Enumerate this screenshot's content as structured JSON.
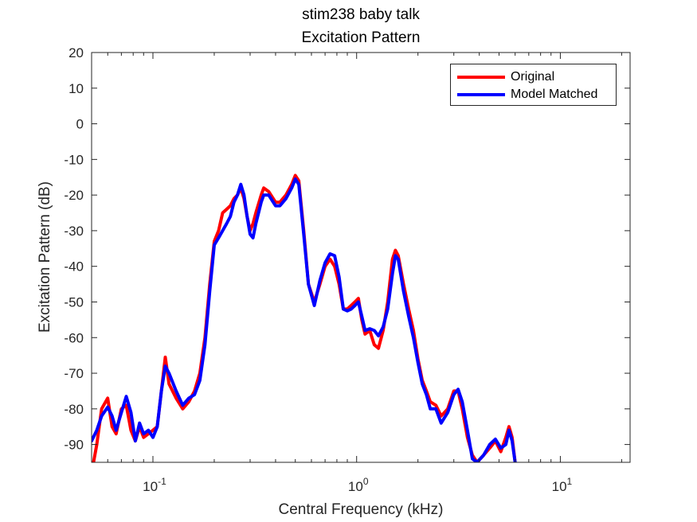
{
  "chart_data": {
    "type": "line",
    "title": "stim238 baby talk",
    "subtitle": "Excitation Pattern",
    "xlabel": "Central Frequency (kHz)",
    "ylabel": "Excitation Pattern (dB)",
    "xscale": "log",
    "xlim": [
      0.05,
      22
    ],
    "ylim": [
      -95,
      20
    ],
    "xticks": [
      {
        "value": 0.1,
        "label": "10",
        "exp": "-1"
      },
      {
        "value": 1,
        "label": "10",
        "exp": "0"
      },
      {
        "value": 10,
        "label": "10",
        "exp": "1"
      }
    ],
    "yticks": [
      20,
      10,
      0,
      -10,
      -20,
      -30,
      -40,
      -50,
      -60,
      -70,
      -80,
      -90
    ],
    "grid": false,
    "legend_position": "top-right",
    "series": [
      {
        "name": "Original",
        "color": "#ff0000",
        "points": [
          [
            0.05,
            -98
          ],
          [
            0.053,
            -90
          ],
          [
            0.056,
            -80
          ],
          [
            0.06,
            -77
          ],
          [
            0.063,
            -85
          ],
          [
            0.066,
            -87
          ],
          [
            0.07,
            -80
          ],
          [
            0.074,
            -79
          ],
          [
            0.078,
            -86
          ],
          [
            0.082,
            -89
          ],
          [
            0.086,
            -85
          ],
          [
            0.09,
            -88
          ],
          [
            0.095,
            -87
          ],
          [
            0.1,
            -86
          ],
          [
            0.105,
            -85
          ],
          [
            0.11,
            -75
          ],
          [
            0.115,
            -65.5
          ],
          [
            0.12,
            -73
          ],
          [
            0.13,
            -77
          ],
          [
            0.14,
            -80
          ],
          [
            0.15,
            -78
          ],
          [
            0.16,
            -75
          ],
          [
            0.17,
            -70
          ],
          [
            0.18,
            -60
          ],
          [
            0.19,
            -45
          ],
          [
            0.2,
            -33
          ],
          [
            0.21,
            -30
          ],
          [
            0.22,
            -25
          ],
          [
            0.23,
            -24
          ],
          [
            0.24,
            -23
          ],
          [
            0.25,
            -21
          ],
          [
            0.26,
            -20
          ],
          [
            0.27,
            -18
          ],
          [
            0.28,
            -21
          ],
          [
            0.29,
            -26
          ],
          [
            0.3,
            -30
          ],
          [
            0.31,
            -28
          ],
          [
            0.32,
            -25
          ],
          [
            0.34,
            -20
          ],
          [
            0.35,
            -18
          ],
          [
            0.37,
            -19
          ],
          [
            0.4,
            -22
          ],
          [
            0.42,
            -22
          ],
          [
            0.45,
            -20
          ],
          [
            0.48,
            -17
          ],
          [
            0.5,
            -14.5
          ],
          [
            0.52,
            -16
          ],
          [
            0.55,
            -30
          ],
          [
            0.58,
            -45
          ],
          [
            0.62,
            -50
          ],
          [
            0.66,
            -45
          ],
          [
            0.7,
            -40
          ],
          [
            0.74,
            -38
          ],
          [
            0.78,
            -40
          ],
          [
            0.82,
            -45
          ],
          [
            0.86,
            -52
          ],
          [
            0.9,
            -52
          ],
          [
            0.94,
            -51
          ],
          [
            0.98,
            -50
          ],
          [
            1.02,
            -49
          ],
          [
            1.06,
            -55
          ],
          [
            1.1,
            -59
          ],
          [
            1.16,
            -58
          ],
          [
            1.22,
            -62
          ],
          [
            1.28,
            -63
          ],
          [
            1.35,
            -58
          ],
          [
            1.42,
            -50
          ],
          [
            1.5,
            -38
          ],
          [
            1.55,
            -35.5
          ],
          [
            1.6,
            -37
          ],
          [
            1.7,
            -45
          ],
          [
            1.8,
            -52
          ],
          [
            1.9,
            -58
          ],
          [
            2.0,
            -66
          ],
          [
            2.1,
            -72
          ],
          [
            2.2,
            -75
          ],
          [
            2.3,
            -78
          ],
          [
            2.45,
            -79
          ],
          [
            2.6,
            -82
          ],
          [
            2.8,
            -80
          ],
          [
            3.0,
            -75
          ],
          [
            3.15,
            -75
          ],
          [
            3.3,
            -80
          ],
          [
            3.5,
            -88
          ],
          [
            3.7,
            -93
          ],
          [
            3.9,
            -95
          ],
          [
            4.2,
            -93
          ],
          [
            4.5,
            -91
          ],
          [
            4.8,
            -89
          ],
          [
            5.1,
            -92
          ],
          [
            5.4,
            -88
          ],
          [
            5.6,
            -85
          ],
          [
            5.8,
            -88
          ],
          [
            6.0,
            -95
          ]
        ]
      },
      {
        "name": "Model Matched",
        "color": "#0000ff",
        "points": [
          [
            0.05,
            -89
          ],
          [
            0.053,
            -86
          ],
          [
            0.056,
            -82
          ],
          [
            0.06,
            -79.5
          ],
          [
            0.063,
            -82
          ],
          [
            0.066,
            -86
          ],
          [
            0.07,
            -81
          ],
          [
            0.074,
            -76.5
          ],
          [
            0.078,
            -81
          ],
          [
            0.082,
            -89
          ],
          [
            0.086,
            -84
          ],
          [
            0.09,
            -87
          ],
          [
            0.095,
            -86
          ],
          [
            0.1,
            -88
          ],
          [
            0.105,
            -85
          ],
          [
            0.11,
            -75
          ],
          [
            0.115,
            -68
          ],
          [
            0.12,
            -70
          ],
          [
            0.13,
            -75
          ],
          [
            0.14,
            -79
          ],
          [
            0.15,
            -77
          ],
          [
            0.16,
            -76
          ],
          [
            0.17,
            -72
          ],
          [
            0.18,
            -62
          ],
          [
            0.19,
            -47
          ],
          [
            0.2,
            -34
          ],
          [
            0.21,
            -32
          ],
          [
            0.22,
            -30
          ],
          [
            0.23,
            -28
          ],
          [
            0.24,
            -26
          ],
          [
            0.25,
            -22
          ],
          [
            0.26,
            -20
          ],
          [
            0.27,
            -17
          ],
          [
            0.28,
            -20
          ],
          [
            0.29,
            -26
          ],
          [
            0.3,
            -31
          ],
          [
            0.31,
            -32
          ],
          [
            0.32,
            -28
          ],
          [
            0.34,
            -22
          ],
          [
            0.35,
            -20
          ],
          [
            0.37,
            -20
          ],
          [
            0.4,
            -23
          ],
          [
            0.42,
            -23
          ],
          [
            0.45,
            -21
          ],
          [
            0.48,
            -18
          ],
          [
            0.5,
            -15.5
          ],
          [
            0.52,
            -17
          ],
          [
            0.55,
            -31
          ],
          [
            0.58,
            -45
          ],
          [
            0.62,
            -51
          ],
          [
            0.66,
            -44
          ],
          [
            0.7,
            -39
          ],
          [
            0.74,
            -36.5
          ],
          [
            0.78,
            -37
          ],
          [
            0.82,
            -43
          ],
          [
            0.86,
            -52
          ],
          [
            0.9,
            -52.5
          ],
          [
            0.94,
            -52
          ],
          [
            0.98,
            -51
          ],
          [
            1.02,
            -50
          ],
          [
            1.06,
            -54
          ],
          [
            1.1,
            -58
          ],
          [
            1.16,
            -57.5
          ],
          [
            1.22,
            -58
          ],
          [
            1.28,
            -59.5
          ],
          [
            1.35,
            -57
          ],
          [
            1.42,
            -52
          ],
          [
            1.5,
            -42
          ],
          [
            1.55,
            -37
          ],
          [
            1.6,
            -38
          ],
          [
            1.7,
            -47
          ],
          [
            1.8,
            -54
          ],
          [
            1.9,
            -60
          ],
          [
            2.0,
            -67
          ],
          [
            2.1,
            -73
          ],
          [
            2.2,
            -76
          ],
          [
            2.3,
            -80
          ],
          [
            2.45,
            -80
          ],
          [
            2.6,
            -84
          ],
          [
            2.8,
            -81
          ],
          [
            3.0,
            -76
          ],
          [
            3.15,
            -74.5
          ],
          [
            3.3,
            -78
          ],
          [
            3.5,
            -86
          ],
          [
            3.7,
            -94
          ],
          [
            3.9,
            -95
          ],
          [
            4.2,
            -93
          ],
          [
            4.5,
            -90
          ],
          [
            4.8,
            -88.5
          ],
          [
            5.1,
            -91
          ],
          [
            5.4,
            -90
          ],
          [
            5.6,
            -86
          ],
          [
            5.8,
            -89
          ],
          [
            6.0,
            -95
          ]
        ]
      }
    ]
  }
}
